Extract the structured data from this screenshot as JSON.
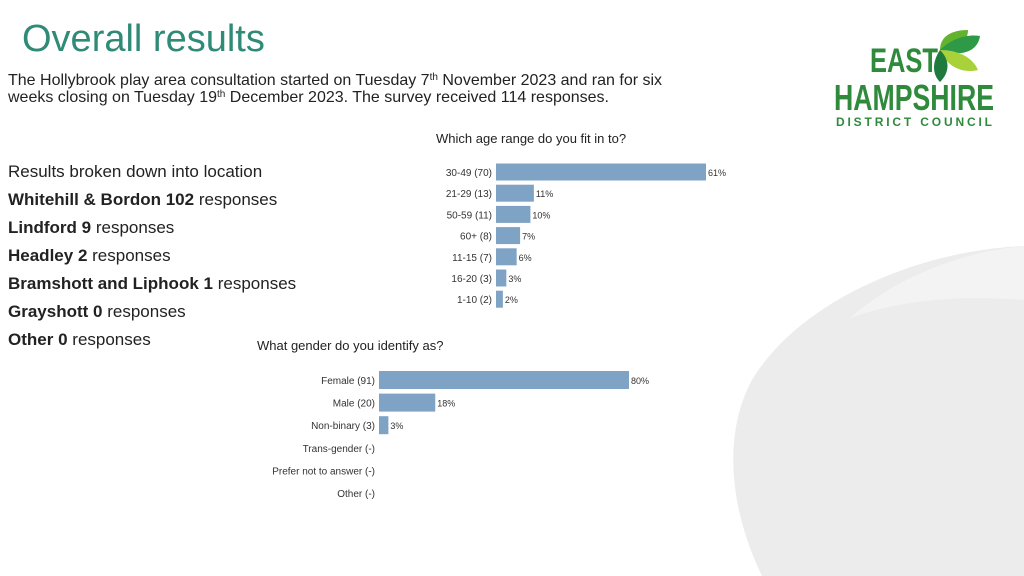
{
  "slide": {
    "title": "Overall results",
    "intro": {
      "part1": "The Hollybrook play area consultation started on Tuesday 7",
      "sup1": "th",
      "part2": " November 2023 and ran for six weeks closing on Tuesday 19",
      "sup2": "th",
      "part3": " December 2023. The survey received 114 responses."
    },
    "locations_heading": "Results broken down into location",
    "locations": [
      {
        "name": "Whitehill & Bordon",
        "count": "102",
        "suffix": "responses"
      },
      {
        "name": "Lindford",
        "count": "9",
        "suffix": "responses"
      },
      {
        "name": "Headley",
        "count": "2",
        "suffix": "responses"
      },
      {
        "name": "Bramshott and Liphook",
        "count": "1",
        "suffix": "responses"
      },
      {
        "name": "Grayshott ",
        "count": "0",
        "suffix": "responses"
      },
      {
        "name": "Other",
        "count": "0",
        "suffix": "responses"
      }
    ]
  },
  "logo": {
    "line1": "EAST",
    "line2": "HAMPSHIRE",
    "line3": "DISTRICT COUNCIL",
    "text_color": "#2f8a3c",
    "leaf_colors": [
      "#1f7a3e",
      "#63b32e",
      "#a9d13a",
      "#2e9a48"
    ]
  },
  "colors": {
    "bar": "#7fa3c5",
    "title": "#2f8a76",
    "background_shape": "#ececec"
  },
  "chart_data": [
    {
      "type": "bar",
      "orientation": "horizontal",
      "title": "Which age range do you fit in to?",
      "categories": [
        "30-49 (70)",
        "21-29 (13)",
        "50-59 (11)",
        "60+ (8)",
        "11-15 (7)",
        "16-20 (3)",
        "1-10 (2)"
      ],
      "values": [
        61,
        11,
        10,
        7,
        6,
        3,
        2
      ],
      "data_labels": [
        "61%",
        "11%",
        "10%",
        "7%",
        "6%",
        "3%",
        "2%"
      ],
      "xlim": [
        0,
        61
      ],
      "grid": false
    },
    {
      "type": "bar",
      "orientation": "horizontal",
      "title": "What gender do you identify as?",
      "categories": [
        "Female (91)",
        "Male (20)",
        "Non-binary (3)",
        "Trans-gender (-)",
        "Prefer not to answer (-)",
        "Other (-)"
      ],
      "values": [
        80,
        18,
        3,
        0,
        0,
        0
      ],
      "data_labels": [
        "80%",
        "18%",
        "3%",
        "",
        "",
        ""
      ],
      "xlim": [
        0,
        80
      ],
      "grid": false
    }
  ]
}
